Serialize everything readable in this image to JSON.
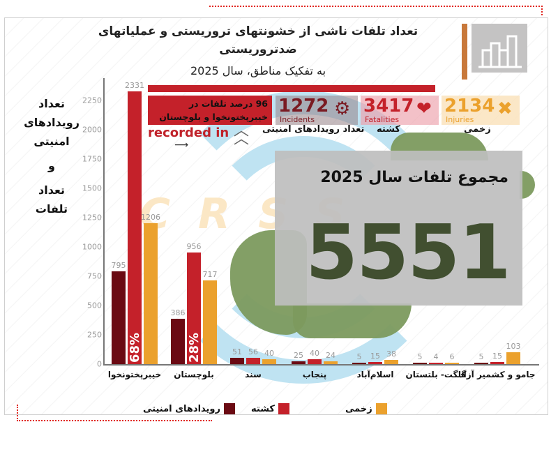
{
  "header": {
    "title_line1": "تعداد تلفات ناشی از خشونتهای تروریستی و عملیاتهای ضدتروریستی",
    "title_line2": "به تفکیک مناطق، سال 2025",
    "icon": "bar-chart-icon"
  },
  "colors": {
    "incidents": "#6b0a13",
    "fatalities": "#c4212a",
    "injuries": "#eba12d",
    "accent": "#c8783a",
    "total_number": "#414f30",
    "map": "#7c9a5e"
  },
  "y_axis": {
    "label_lines": [
      "تعداد",
      "رویدادهای",
      "امنیتی",
      "و",
      "تعداد",
      "تلفات"
    ],
    "ticks": [
      "0",
      "250",
      "500",
      "750",
      "1000",
      "1250",
      "1500",
      "1750",
      "2000",
      "2250"
    ]
  },
  "callout": {
    "text_line1": "96 درصد تلفات در",
    "text_line2": "خیبرپختونخوا و بلوچستان",
    "recorded_in": "recorded in",
    "arrow": "→"
  },
  "stats": [
    {
      "value": "1272",
      "sub": "Incidents",
      "label": "تعداد رویدادهای امنیتی",
      "icon": "gear-icon"
    },
    {
      "value": "3417",
      "sub": "Fatalities",
      "label": "کشته",
      "icon": "broken-heart-icon"
    },
    {
      "value": "2134",
      "sub": "Injuries",
      "label": "زخمی",
      "icon": "bandage-icon"
    }
  ],
  "total": {
    "title": "مجموع تلفات سال 2025",
    "value": "5551"
  },
  "watermark": "CRSS",
  "legend": {
    "incidents": "رویدادهای امنیتی",
    "fatalities": "کشته",
    "injuries": "زخمی"
  },
  "chart_data": {
    "type": "bar",
    "title": "تعداد تلفات ناشی از خشونتهای تروریستی و عملیاتهای ضدتروریستی به تفکیک مناطق، سال 2025",
    "xlabel": "",
    "ylabel": "تعداد رویدادهای امنیتی و تعداد تلفات",
    "ylim": [
      0,
      2400
    ],
    "grid": false,
    "legend_position": "bottom",
    "categories": [
      "خیبرپختونخوا",
      "بلوچستان",
      "سند",
      "پنجاب",
      "اسلام‌آباد",
      "گلگت- بلتستان",
      "جامو و کشمیر آزاد"
    ],
    "series": [
      {
        "name": "رویدادهای امنیتی",
        "values": [
          795,
          386,
          51,
          25,
          5,
          5,
          5
        ]
      },
      {
        "name": "کشته",
        "values": [
          2331,
          956,
          56,
          40,
          15,
          4,
          15
        ]
      },
      {
        "name": "زخمی",
        "values": [
          1206,
          717,
          40,
          24,
          38,
          6,
          103
        ]
      }
    ],
    "annotations": [
      {
        "category": "خیبرپختونخوا",
        "series": "کشته",
        "text": "68%"
      },
      {
        "category": "بلوچستان",
        "series": "کشته",
        "text": "28%"
      },
      {
        "text": "96 درصد تلفات در خیبرپختونخوا و بلوچستان"
      },
      {
        "text": "1272 Incidents"
      },
      {
        "text": "3417 Fatalities"
      },
      {
        "text": "2134 Injuries"
      },
      {
        "text": "مجموع تلفات سال 2025: 5551"
      }
    ]
  }
}
